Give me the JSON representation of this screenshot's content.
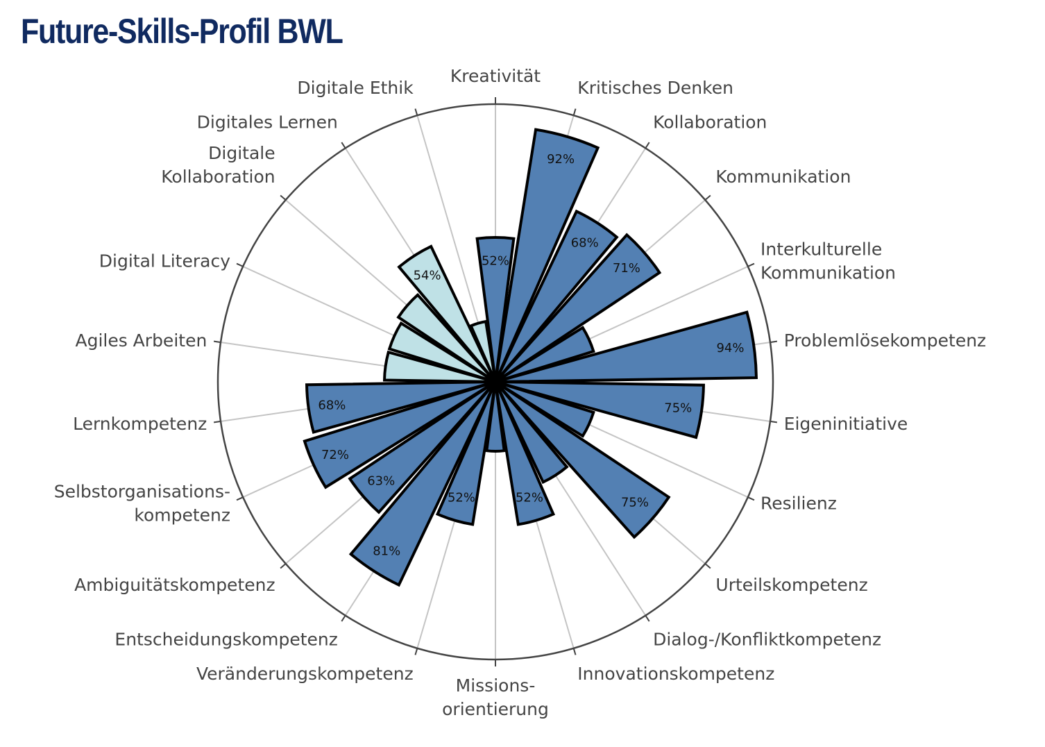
{
  "title": "Future-Skills-Profil BWL",
  "chart_data": {
    "type": "polar-bar",
    "title": "Future-Skills-Profil BWL",
    "rlim": [
      0,
      100
    ],
    "grid": true,
    "colors": {
      "primary": "#5380b3",
      "digital": "#bfe1e6",
      "outline": "#000000",
      "spokes": "#c4c4c4",
      "ring": "#444444"
    },
    "categories": [
      {
        "label": [
          "Kreativität"
        ],
        "value": 52,
        "show_value": true,
        "group": "primary"
      },
      {
        "label": [
          "Kritisches Denken"
        ],
        "value": 92,
        "show_value": true,
        "group": "primary"
      },
      {
        "label": [
          "Kollaboration"
        ],
        "value": 68,
        "show_value": true,
        "group": "primary"
      },
      {
        "label": [
          "Kommunikation"
        ],
        "value": 71,
        "show_value": true,
        "group": "primary"
      },
      {
        "label": [
          "Interkulturelle",
          "Kommunikation"
        ],
        "value": 37,
        "show_value": false,
        "group": "primary"
      },
      {
        "label": [
          "Problemlösekompetenz"
        ],
        "value": 94,
        "show_value": true,
        "group": "primary"
      },
      {
        "label": [
          "Eigeninitiative"
        ],
        "value": 75,
        "show_value": true,
        "group": "primary"
      },
      {
        "label": [
          "Resilienz"
        ],
        "value": 37,
        "show_value": false,
        "group": "primary"
      },
      {
        "label": [
          "Urteilskompetenz"
        ],
        "value": 75,
        "show_value": true,
        "group": "primary"
      },
      {
        "label": [
          "Dialog-/Konfliktkompetenz"
        ],
        "value": 40,
        "show_value": false,
        "group": "primary"
      },
      {
        "label": [
          "Innovationskompetenz"
        ],
        "value": 52,
        "show_value": true,
        "group": "primary"
      },
      {
        "label": [
          "Missions-",
          "orientierung"
        ],
        "value": 25,
        "show_value": false,
        "group": "primary"
      },
      {
        "label": [
          "Veränderungskompetenz"
        ],
        "value": 52,
        "show_value": true,
        "group": "primary"
      },
      {
        "label": [
          "Entscheidungskompetenz"
        ],
        "value": 81,
        "show_value": true,
        "group": "primary"
      },
      {
        "label": [
          "Ambiguitätskompetenz"
        ],
        "value": 63,
        "show_value": true,
        "group": "primary"
      },
      {
        "label": [
          "Selbstorganisations-",
          "kompetenz"
        ],
        "value": 72,
        "show_value": true,
        "group": "primary"
      },
      {
        "label": [
          "Lernkompetenz"
        ],
        "value": 68,
        "show_value": true,
        "group": "primary"
      },
      {
        "label": [
          "Agiles Arbeiten"
        ],
        "value": 40,
        "show_value": false,
        "group": "digital"
      },
      {
        "label": [
          "Digital Literacy"
        ],
        "value": 40,
        "show_value": false,
        "group": "digital"
      },
      {
        "label": [
          "Digitale",
          "Kollaboration"
        ],
        "value": 42,
        "show_value": false,
        "group": "digital"
      },
      {
        "label": [
          "Digitales Lernen"
        ],
        "value": 54,
        "show_value": true,
        "group": "digital"
      },
      {
        "label": [
          "Digitale Ethik"
        ],
        "value": 22,
        "show_value": false,
        "group": "digital"
      }
    ]
  }
}
